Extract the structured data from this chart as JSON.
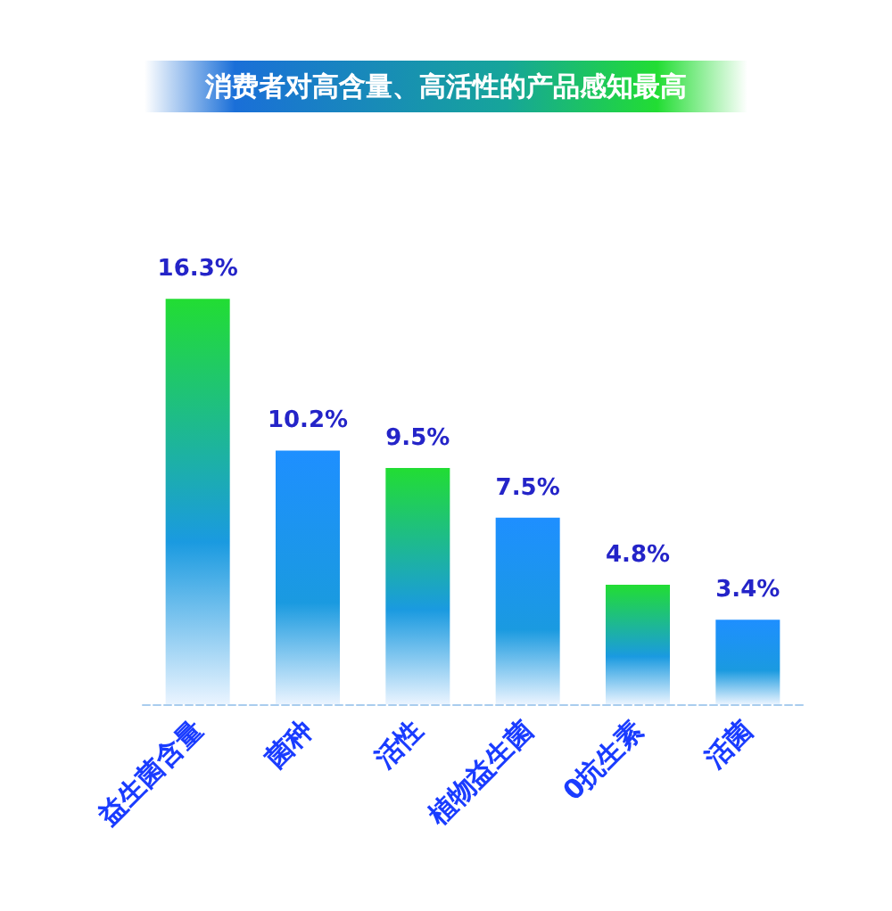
{
  "chart_data": {
    "type": "bar",
    "title": "消费者对高含量、高活性的产品感知最高",
    "categories": [
      "益生菌含量",
      "菌种",
      "活性",
      "植物益生菌",
      "0抗生素",
      "活菌"
    ],
    "values": [
      16.3,
      10.2,
      9.5,
      7.5,
      4.8,
      3.4
    ],
    "value_labels": [
      "16.3%",
      "10.2%",
      "9.5%",
      "7.5%",
      "4.8%",
      "3.4%"
    ],
    "colors": [
      "#22dd33",
      "#1e8fff",
      "#22dd33",
      "#1e8fff",
      "#22dd33",
      "#1e8fff"
    ],
    "tick_labels": "x"
  }
}
